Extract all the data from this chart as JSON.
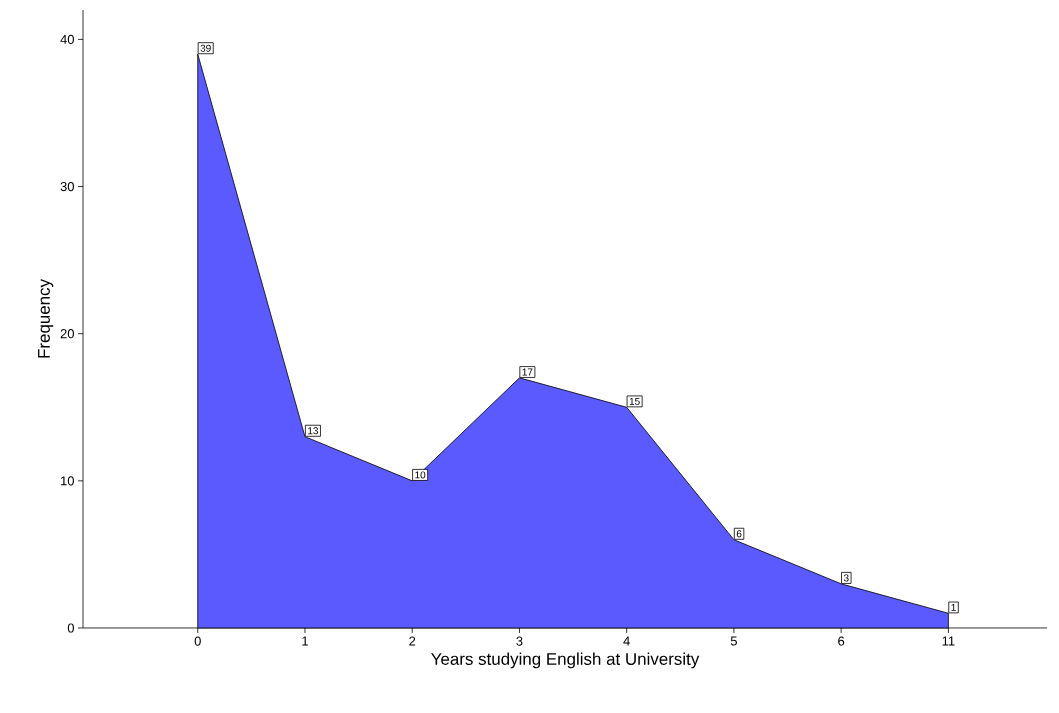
{
  "chart_data": {
    "type": "area",
    "xlabel": "Years studying English at University",
    "ylabel": "Frequency",
    "categories": [
      "0",
      "1",
      "2",
      "3",
      "4",
      "5",
      "6",
      "11"
    ],
    "values": [
      39,
      13,
      10,
      17,
      15,
      6,
      3,
      1
    ],
    "color": "#5a5aff",
    "ylim": [
      0,
      42
    ],
    "yticks": [
      0,
      10,
      20,
      30,
      40
    ],
    "data_labels": true
  }
}
